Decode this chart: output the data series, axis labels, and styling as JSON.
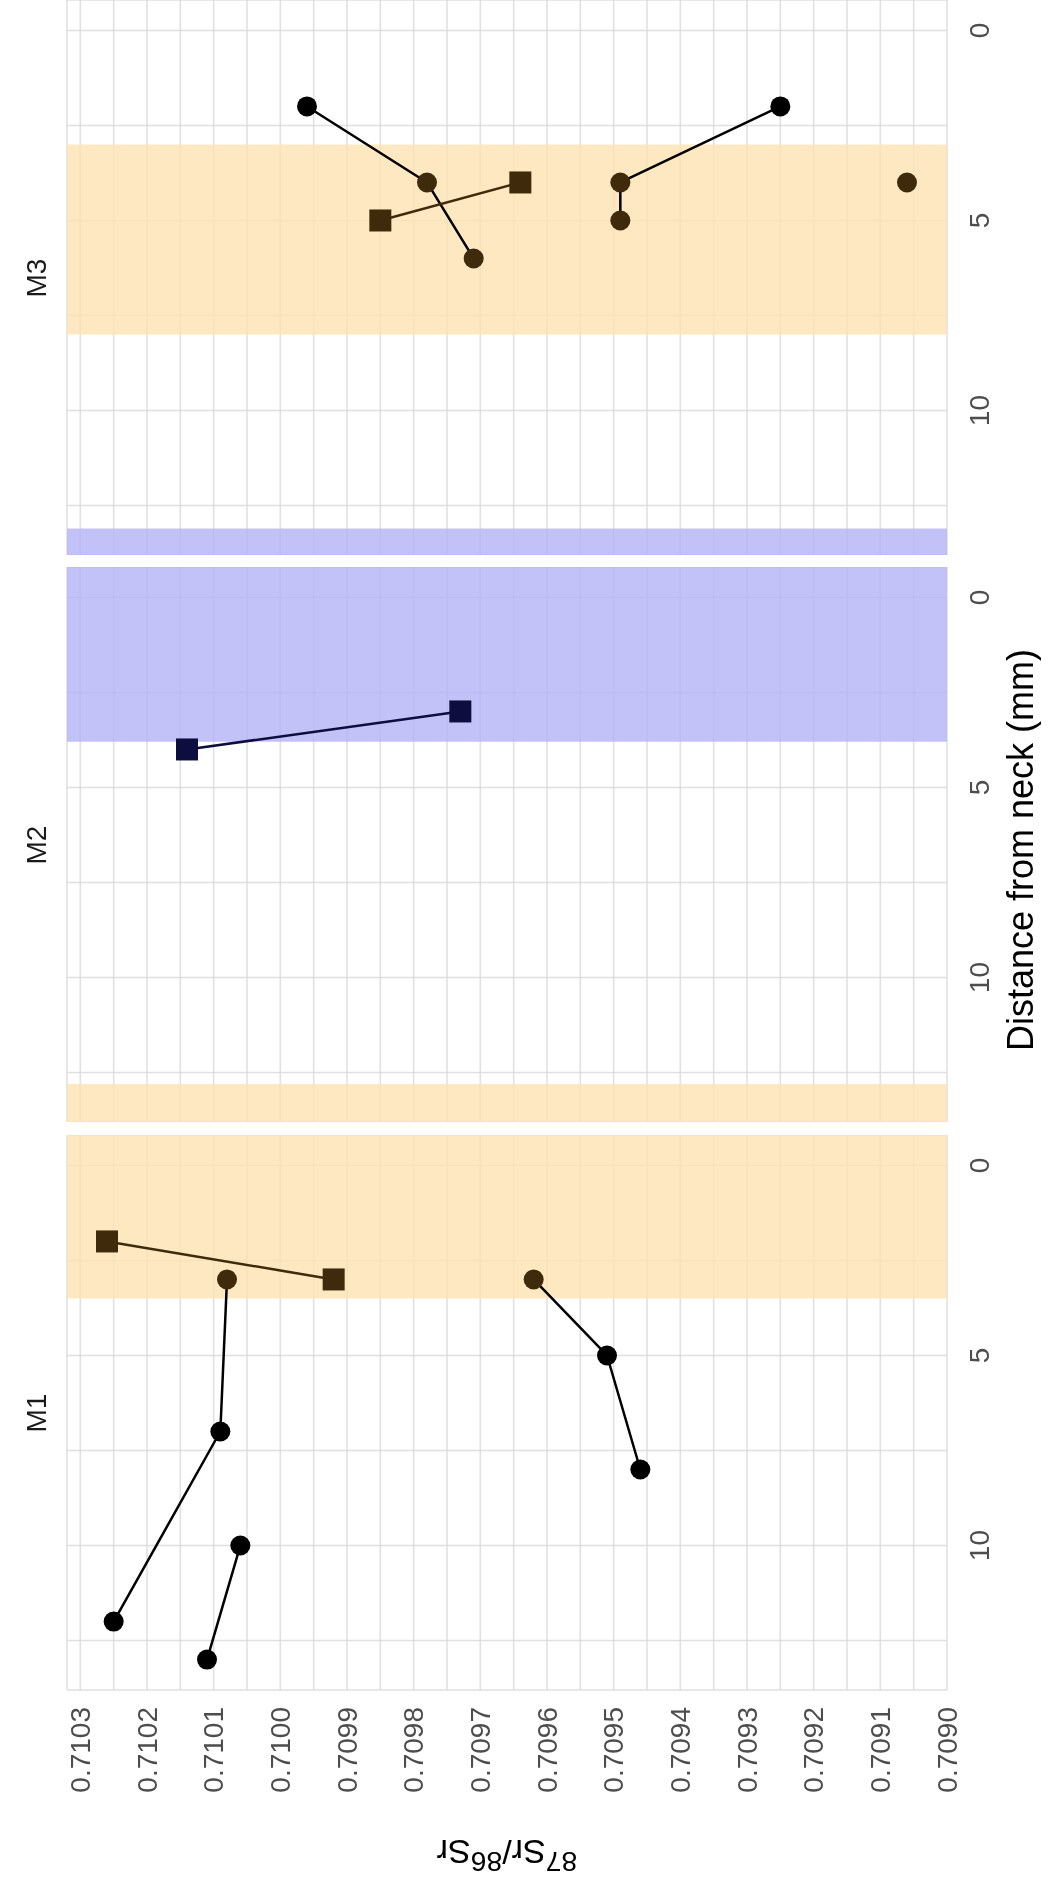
{
  "chart_data": [
    {
      "type": "line",
      "title": "M3",
      "tick_labels": "y",
      "xlim": [
        0.71032,
        0.709
      ],
      "xticks": [
        0.709,
        {
          "value": 0.70905,
          "label": null
        },
        0.7091,
        {
          "value": 0.70915,
          "label": null
        },
        0.7092,
        {
          "value": 0.70925,
          "label": null
        },
        0.7093,
        {
          "value": 0.70935,
          "label": null
        },
        0.7094,
        {
          "value": 0.70945,
          "label": null
        },
        0.7095,
        {
          "value": 0.70955,
          "label": null
        },
        0.7096,
        {
          "value": 0.70965,
          "label": null
        },
        0.7097,
        {
          "value": 0.70975,
          "label": null
        },
        0.7098,
        {
          "value": 0.70985,
          "label": null
        },
        0.7099,
        {
          "value": 0.70995,
          "label": null
        },
        0.71,
        {
          "value": 0.71005,
          "label": null
        },
        0.7101,
        {
          "value": 0.71015,
          "label": null
        },
        0.7102,
        {
          "value": 0.71025,
          "label": null
        },
        0.7103
      ],
      "ylim": [
        13.8,
        -0.8
      ],
      "yticks": [
        0,
        {
          "value": 2.5,
          "label": null
        },
        5,
        {
          "value": 7.5,
          "label": null
        },
        10,
        {
          "value": 12.5,
          "label": null
        }
      ],
      "grid": true,
      "bands": [
        {
          "axis": "y",
          "from": 3.0,
          "to": 8.0,
          "color": "#fde2b2"
        },
        {
          "axis": "y",
          "from": 13.1,
          "to": 13.8,
          "color": "#b3b3f7"
        }
      ],
      "series": [
        {
          "marker": "circle",
          "color": "#000000",
          "colors": [
            "#000000",
            "#3f2a0b",
            "#3f2a0b"
          ],
          "x": [
            0.70996,
            0.70978,
            0.70971
          ],
          "values": [
            2,
            4,
            6
          ]
        },
        {
          "marker": "square",
          "color": "#3f2a0b",
          "colors": [
            "#3f2a0b",
            "#3f2a0b"
          ],
          "x": [
            0.70964,
            0.70985
          ],
          "values": [
            4,
            5
          ]
        },
        {
          "marker": "circle",
          "color": "#000000",
          "colors": [
            "#000000",
            "#3f2a0b",
            "#3f2a0b"
          ],
          "x": [
            0.70925,
            0.70949,
            0.70949
          ],
          "values": [
            2,
            4,
            5
          ]
        },
        {
          "marker": "circle",
          "color": "#3f2a0b",
          "colors": [
            "#3f2a0b"
          ],
          "x": [
            0.70906
          ],
          "values": [
            4
          ]
        }
      ]
    },
    {
      "type": "line",
      "title": "M2",
      "ylabel": "Distance from neck (mm)",
      "tick_labels": "y",
      "xlim": [
        0.71032,
        0.709
      ],
      "xticks": [
        0.709,
        {
          "value": 0.70905,
          "label": null
        },
        0.7091,
        {
          "value": 0.70915,
          "label": null
        },
        0.7092,
        {
          "value": 0.70925,
          "label": null
        },
        0.7093,
        {
          "value": 0.70935,
          "label": null
        },
        0.7094,
        {
          "value": 0.70945,
          "label": null
        },
        0.7095,
        {
          "value": 0.70955,
          "label": null
        },
        0.7096,
        {
          "value": 0.70965,
          "label": null
        },
        0.7097,
        {
          "value": 0.70975,
          "label": null
        },
        0.7098,
        {
          "value": 0.70985,
          "label": null
        },
        0.7099,
        {
          "value": 0.70995,
          "label": null
        },
        0.71,
        {
          "value": 0.71005,
          "label": null
        },
        0.7101,
        {
          "value": 0.71015,
          "label": null
        },
        0.7102,
        {
          "value": 0.71025,
          "label": null
        },
        0.7103
      ],
      "ylim": [
        13.8,
        -0.8
      ],
      "yticks": [
        0,
        {
          "value": 2.5,
          "label": null
        },
        5,
        {
          "value": 7.5,
          "label": null
        },
        10,
        {
          "value": 12.5,
          "label": null
        }
      ],
      "grid": true,
      "bands": [
        {
          "axis": "y",
          "from": -0.8,
          "to": 3.8,
          "color": "#b3b3f7"
        },
        {
          "axis": "y",
          "from": 12.8,
          "to": 13.8,
          "color": "#fde2b2"
        }
      ],
      "series": [
        {
          "marker": "square",
          "color": "#0d0d40",
          "colors": [
            "#0d0d40",
            "#0d0d40"
          ],
          "x": [
            0.70973,
            0.71014
          ],
          "values": [
            3,
            4
          ]
        }
      ]
    },
    {
      "type": "line",
      "title": "M1",
      "xlabel": "$^{87}$Sr/$^{86}$Sr",
      "xlim": [
        0.71032,
        0.709
      ],
      "xticks": [
        {
          "value": 0.709,
          "label": "0.7090"
        },
        {
          "value": 0.70905,
          "label": null
        },
        0.7091,
        {
          "value": 0.70915,
          "label": null
        },
        0.7092,
        {
          "value": 0.70925,
          "label": null
        },
        0.7093,
        {
          "value": 0.70935,
          "label": null
        },
        0.7094,
        {
          "value": 0.70945,
          "label": null
        },
        0.7095,
        {
          "value": 0.70955,
          "label": null
        },
        0.7096,
        {
          "value": 0.70965,
          "label": null
        },
        0.7097,
        {
          "value": 0.70975,
          "label": null
        },
        0.7098,
        {
          "value": 0.70985,
          "label": null
        },
        0.7099,
        {
          "value": 0.70995,
          "label": null
        },
        {
          "value": 0.71,
          "label": "0.7100"
        },
        {
          "value": 0.71005,
          "label": null
        },
        0.7101,
        {
          "value": 0.71015,
          "label": null
        },
        0.7102,
        {
          "value": 0.71025,
          "label": null
        },
        0.7103
      ],
      "ylim": [
        13.8,
        -0.8
      ],
      "yticks": [
        0,
        {
          "value": 2.5,
          "label": null
        },
        5,
        {
          "value": 7.5,
          "label": null
        },
        10,
        {
          "value": 12.5,
          "label": null
        }
      ],
      "grid": true,
      "bands": [
        {
          "axis": "y",
          "from": -0.8,
          "to": 3.5,
          "color": "#fde2b2"
        }
      ],
      "series": [
        {
          "marker": "square",
          "color": "#3f2a0b",
          "colors": [
            "#3f2a0b",
            "#3f2a0b"
          ],
          "x": [
            0.71026,
            0.70992
          ],
          "values": [
            2,
            3
          ]
        },
        {
          "marker": "circle",
          "color": "#000000",
          "colors": [
            "#3f2a0b",
            "#000000",
            "#000000"
          ],
          "x": [
            0.71008,
            0.71009,
            0.71025
          ],
          "values": [
            3,
            7,
            12
          ]
        },
        {
          "marker": "circle",
          "color": "#000000",
          "colors": [
            "#3f2a0b",
            "#000000",
            "#000000"
          ],
          "x": [
            0.70962,
            0.70951,
            0.70946
          ],
          "values": [
            3,
            5,
            8
          ]
        },
        {
          "marker": "circle",
          "color": "#000000",
          "colors": [
            "#000000",
            "#000000"
          ],
          "x": [
            0.71006,
            0.71011
          ],
          "values": [
            10,
            13
          ]
        }
      ]
    }
  ]
}
